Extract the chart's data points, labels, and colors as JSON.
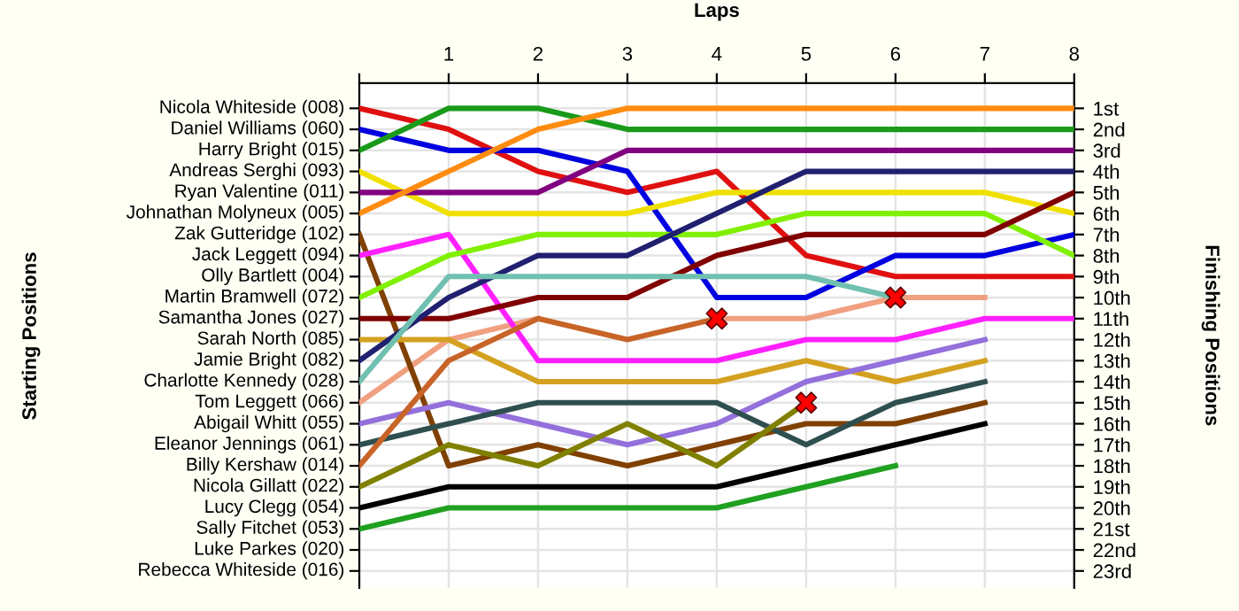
{
  "chart_data": {
    "type": "line",
    "xlabel": "Laps",
    "ylabel": "Finishing Positions",
    "x": [
      0,
      1,
      2,
      3,
      4,
      5,
      6,
      7,
      8
    ],
    "xlim": [
      0,
      8
    ],
    "xticks": [
      {
        "value": 0,
        "label": null
      },
      1,
      2,
      3,
      4,
      5,
      6,
      7,
      8
    ],
    "ylim": [
      23.8,
      -0.2
    ],
    "yticks": [
      {
        "value": 1,
        "label": "1st"
      },
      {
        "value": 2,
        "label": "2nd"
      },
      {
        "value": 3,
        "label": "3rd"
      },
      {
        "value": 4,
        "label": "4th"
      },
      {
        "value": 5,
        "label": "5th"
      },
      {
        "value": 6,
        "label": "6th"
      },
      {
        "value": 7,
        "label": "7th"
      },
      {
        "value": 8,
        "label": "8th"
      },
      {
        "value": 9,
        "label": "9th"
      },
      {
        "value": 10,
        "label": "10th"
      },
      {
        "value": 11,
        "label": "11th"
      },
      {
        "value": 12,
        "label": "12th"
      },
      {
        "value": 13,
        "label": "13th"
      },
      {
        "value": 14,
        "label": "14th"
      },
      {
        "value": 15,
        "label": "15th"
      },
      {
        "value": 16,
        "label": "16th"
      },
      {
        "value": 17,
        "label": "17th"
      },
      {
        "value": 18,
        "label": "18th"
      },
      {
        "value": 19,
        "label": "19th"
      },
      {
        "value": 20,
        "label": "20th"
      },
      {
        "value": 21,
        "label": "21st"
      },
      {
        "value": 22,
        "label": "22nd"
      },
      {
        "value": 23,
        "label": "23rd"
      }
    ],
    "annotations": [
      "Starting Positions",
      "Nicola Whiteside (008)",
      "Daniel Williams (060)",
      "Harry Bright (015)",
      "Andreas Serghi (093)",
      "Ryan Valentine (011)",
      "Johnathan Molyneux (005)",
      "Zak Gutteridge (102)",
      "Jack Leggett (094)",
      "Olly Bartlett (004)",
      "Martin Bramwell (072)",
      "Samantha Jones (027)",
      "Sarah North (085)",
      "Jamie Bright (082)",
      "Charlotte Kennedy (028)",
      "Tom Leggett (066)",
      "Abigail Whitt (055)",
      "Eleanor Jennings (061)",
      "Billy Kershaw (014)",
      "Nicola Gillatt (022)",
      "Lucy Clegg (054)",
      "Sally Fitchet (053)",
      "Luke Parkes (020)",
      "Rebecca Whiteside (016)"
    ],
    "grid": true,
    "series": [
      {
        "color": "#f0a080",
        "values": [
          15,
          12,
          11,
          null,
          11,
          11,
          10,
          10,
          null
        ]
      },
      {
        "color": "#e01010",
        "values": [
          1,
          2,
          4,
          5,
          4,
          8,
          9,
          9,
          9
        ]
      },
      {
        "color": "#0000e0",
        "values": [
          2,
          3,
          3,
          4,
          10,
          10,
          8,
          8,
          7
        ]
      },
      {
        "color": "#1a9a1a",
        "values": [
          3,
          1,
          1,
          2,
          2,
          2,
          2,
          2,
          2
        ]
      },
      {
        "color": "#f0e000",
        "values": [
          4,
          6,
          6,
          6,
          5,
          5,
          5,
          5,
          6
        ]
      },
      {
        "color": "#800080",
        "values": [
          5,
          5,
          5,
          3,
          3,
          3,
          3,
          3,
          3
        ]
      },
      {
        "color": "#ff8c10",
        "values": [
          6,
          4,
          2,
          1,
          1,
          1,
          1,
          1,
          1
        ]
      },
      {
        "color": "#804000",
        "values": [
          7,
          18,
          17,
          18,
          17,
          16,
          16,
          15,
          null
        ]
      },
      {
        "color": "#ff20ff",
        "values": [
          8,
          7,
          13,
          13,
          13,
          12,
          12,
          11,
          11
        ]
      },
      {
        "color": "#80f000",
        "values": [
          10,
          8,
          7,
          7,
          7,
          6,
          6,
          6,
          8
        ]
      },
      {
        "color": "#800000",
        "values": [
          11,
          11,
          10,
          10,
          8,
          7,
          7,
          7,
          5
        ]
      },
      {
        "color": "#d4a020",
        "values": [
          12,
          12,
          14,
          14,
          14,
          13,
          14,
          13,
          null
        ]
      },
      {
        "color": "#202070",
        "values": [
          13,
          10,
          8,
          8,
          6,
          4,
          4,
          4,
          4
        ]
      },
      {
        "color": "#70c0b0",
        "values": [
          14,
          9,
          9,
          9,
          9,
          9,
          10,
          null,
          null
        ]
      },
      {
        "color": "#9370db",
        "values": [
          16,
          15,
          16,
          17,
          16,
          14,
          13,
          12,
          null
        ]
      },
      {
        "color": "#2f4f4f",
        "values": [
          17,
          16,
          15,
          15,
          15,
          17,
          15,
          14,
          null
        ]
      },
      {
        "color": "#c86428",
        "values": [
          18,
          13,
          11,
          12,
          11,
          null,
          null,
          null,
          null
        ]
      },
      {
        "color": "#808000",
        "values": [
          19,
          17,
          18,
          16,
          18,
          15,
          null,
          null,
          null
        ]
      },
      {
        "color": "#000000",
        "values": [
          20,
          19,
          19,
          19,
          19,
          18,
          17,
          16,
          null
        ]
      },
      {
        "color": "#20a020",
        "values": [
          21,
          20,
          20,
          20,
          20,
          19,
          18,
          null,
          null
        ]
      },
      {
        "type": "scatter",
        "marker": "cross",
        "color": "#ff0000",
        "x": [
          4,
          5,
          6
        ],
        "values": [
          11,
          15,
          10
        ]
      }
    ]
  }
}
